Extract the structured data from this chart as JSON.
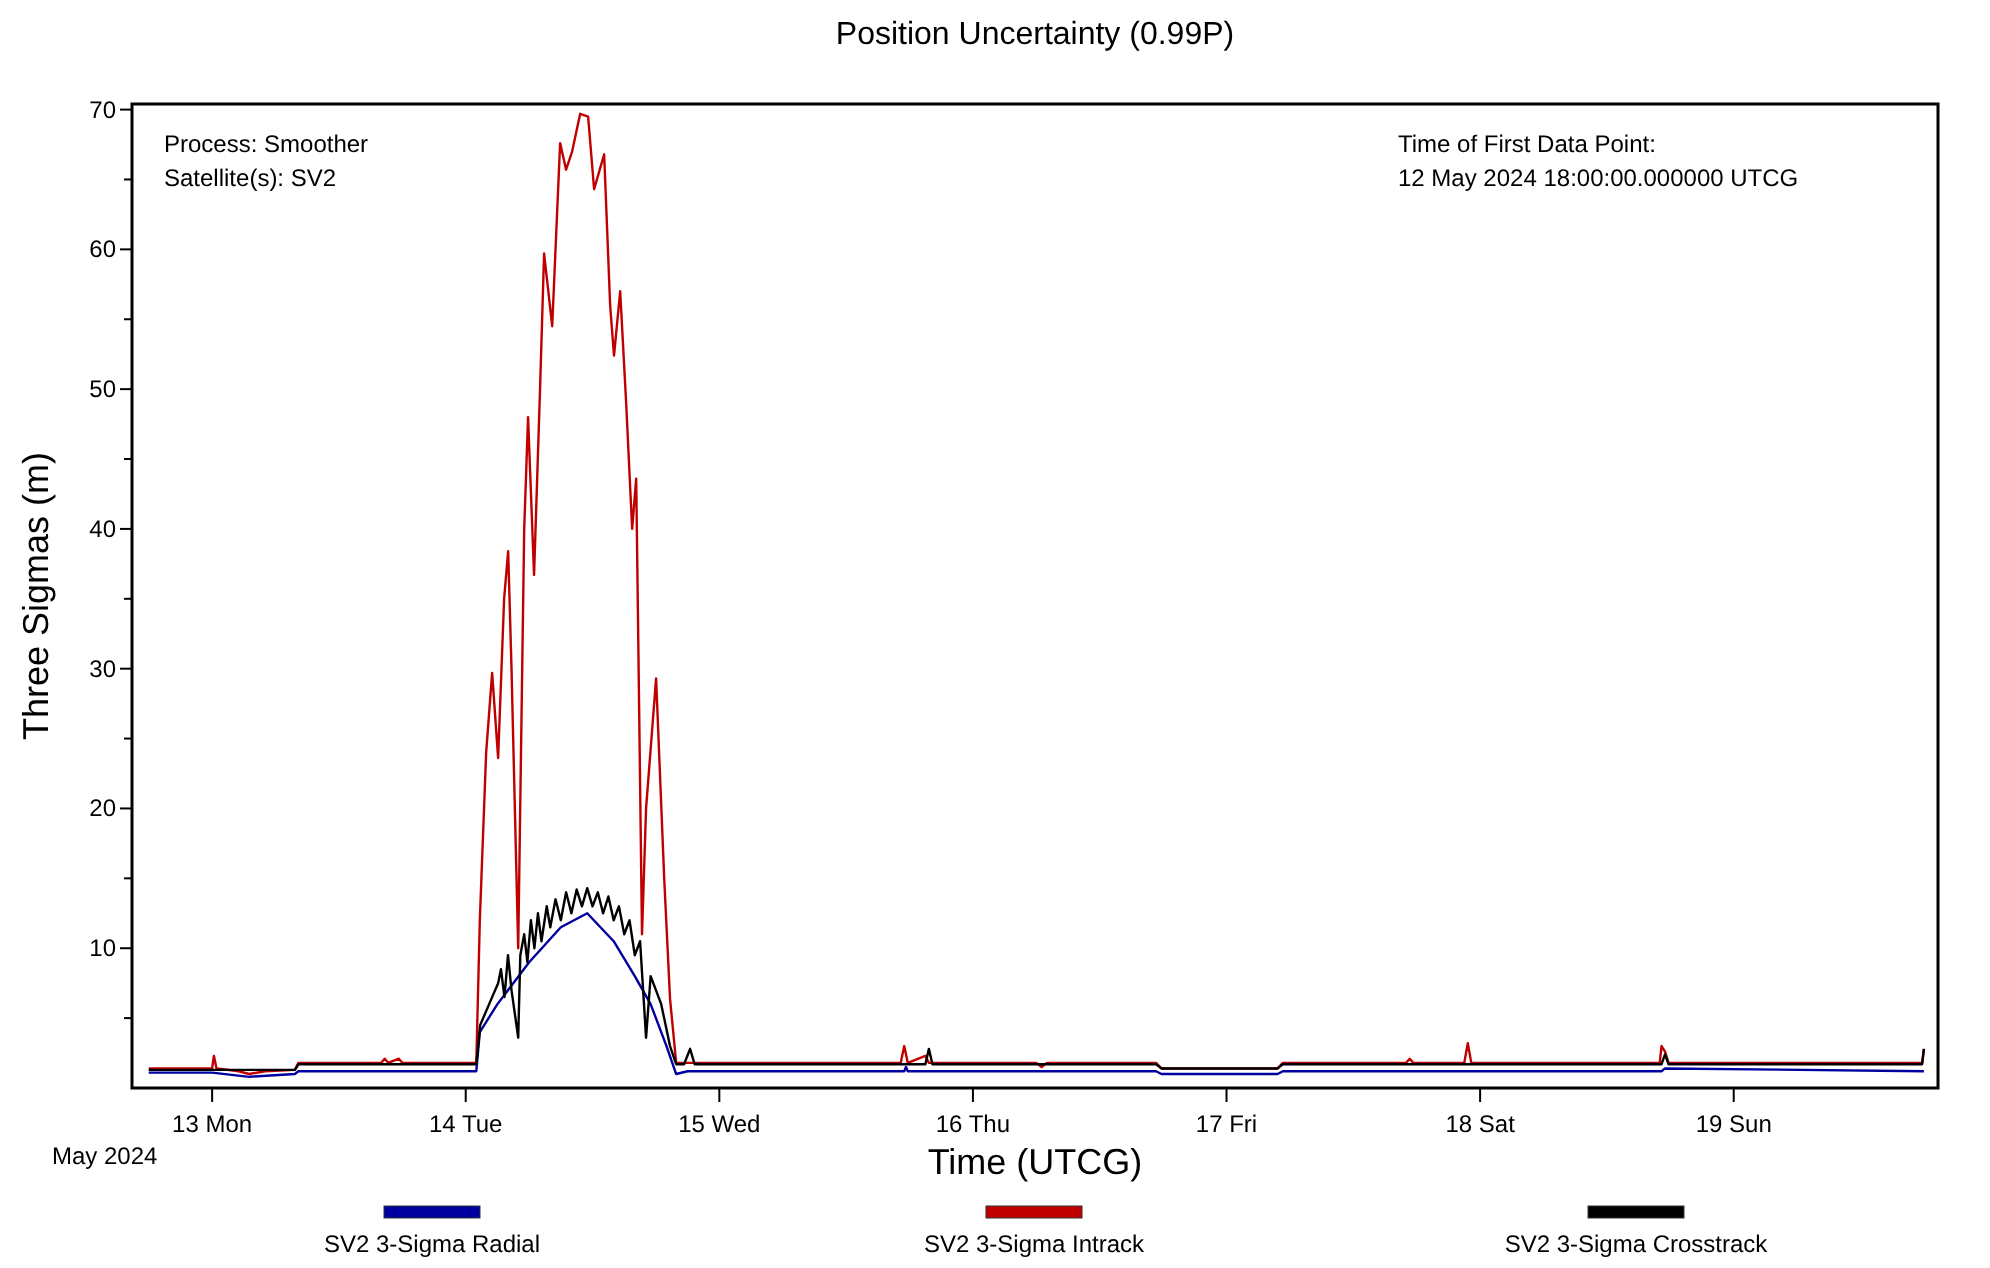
{
  "chart_data": {
    "type": "line",
    "title": "Position Uncertainty (0.99P)",
    "xlabel": "Time (UTCG)",
    "ylabel": "Three Sigmas (m)",
    "annotations": [
      "Process: Smoother",
      "Satellite(s): SV2",
      "Time of First Data Point:",
      "12 May 2024 18:00:00.000000 UTCG",
      "May 2024"
    ],
    "xlim": [
      "2024-05-12T16:25",
      "2024-05-19T19:20"
    ],
    "xticks": [
      {
        "value": "2024-05-13",
        "label": "13 Mon"
      },
      {
        "value": "2024-05-14",
        "label": "14 Tue"
      },
      {
        "value": "2024-05-15",
        "label": "15 Wed"
      },
      {
        "value": "2024-05-16",
        "label": "16 Thu"
      },
      {
        "value": "2024-05-17",
        "label": "17 Fri"
      },
      {
        "value": "2024-05-18",
        "label": "18 Sat"
      },
      {
        "value": "2024-05-19",
        "label": "19 Sun"
      }
    ],
    "ylim": [
      0,
      70.4
    ],
    "yticks": [
      {
        "value": 5,
        "label": null
      },
      10,
      {
        "value": 15,
        "label": null
      },
      20,
      {
        "value": 25,
        "label": null
      },
      30,
      {
        "value": 35,
        "label": null
      },
      40,
      {
        "value": 45,
        "label": null
      },
      50,
      {
        "value": 55,
        "label": null
      },
      60,
      {
        "value": 65,
        "label": null
      },
      70
    ],
    "grid": false,
    "legend": "bottom",
    "line_style": "solid",
    "marker": "none",
    "series": [
      {
        "name": "SV2 3-Sigma Radial",
        "color": "#0000a0",
        "x": [
          "2024-05-12T18:00",
          "2024-05-13T00:00",
          "2024-05-13T03:30",
          "2024-05-13T07:50",
          "2024-05-13T08:10",
          "2024-05-14T01:00",
          "2024-05-14T01:20",
          "2024-05-14T03:00",
          "2024-05-14T04:00",
          "2024-05-14T06:00",
          "2024-05-14T09:00",
          "2024-05-14T11:30",
          "2024-05-14T14:00",
          "2024-05-14T16:00",
          "2024-05-14T17:30",
          "2024-05-14T19:00",
          "2024-05-14T19:55",
          "2024-05-14T21:00",
          "2024-05-15T17:30",
          "2024-05-15T17:40",
          "2024-05-15T17:50",
          "2024-05-16T17:20",
          "2024-05-16T17:50",
          "2024-05-17T04:50",
          "2024-05-17T05:20",
          "2024-05-17T22:50",
          "2024-05-18T17:10",
          "2024-05-18T17:30",
          "2024-05-19T18:00"
        ],
        "values": [
          1.1,
          1.1,
          0.8,
          1.0,
          1.2,
          1.2,
          4,
          6,
          7,
          9,
          11.5,
          12.5,
          10.5,
          8,
          6,
          3,
          1.0,
          1.2,
          1.2,
          1.5,
          1.2,
          1.2,
          1.0,
          1.0,
          1.2,
          1.2,
          1.2,
          1.4,
          1.2
        ]
      },
      {
        "name": "SV2 3-Sigma Intrack",
        "color": "#c00000",
        "x": [
          "2024-05-12T18:00",
          "2024-05-13T00:00",
          "2024-05-13T00:10",
          "2024-05-13T00:25",
          "2024-05-13T02:30",
          "2024-05-13T03:30",
          "2024-05-13T05:00",
          "2024-05-13T07:50",
          "2024-05-13T08:10",
          "2024-05-13T16:00",
          "2024-05-13T16:20",
          "2024-05-13T16:40",
          "2024-05-13T17:40",
          "2024-05-13T18:00",
          "2024-05-14T01:00",
          "2024-05-14T01:20",
          "2024-05-14T01:56",
          "2024-05-14T02:30",
          "2024-05-14T03:04",
          "2024-05-14T03:38",
          "2024-05-14T04:01",
          "2024-05-14T04:20",
          "2024-05-14T04:58",
          "2024-05-14T05:32",
          "2024-05-14T05:54",
          "2024-05-14T06:28",
          "2024-05-14T07:02",
          "2024-05-14T07:25",
          "2024-05-14T08:11",
          "2024-05-14T08:56",
          "2024-05-14T09:30",
          "2024-05-14T10:04",
          "2024-05-14T10:50",
          "2024-05-14T11:35",
          "2024-05-14T12:09",
          "2024-05-14T13:06",
          "2024-05-14T13:40",
          "2024-05-14T14:02",
          "2024-05-14T14:37",
          "2024-05-14T15:11",
          "2024-05-14T15:45",
          "2024-05-14T16:08",
          "2024-05-14T16:41",
          "2024-05-14T17:04",
          "2024-05-14T18:01",
          "2024-05-14T18:47",
          "2024-05-14T19:20",
          "2024-05-14T19:55",
          "2024-05-15T17:10",
          "2024-05-15T17:30",
          "2024-05-15T17:50",
          "2024-05-15T19:30",
          "2024-05-15T19:50",
          "2024-05-16T06:00",
          "2024-05-16T06:30",
          "2024-05-16T07:00",
          "2024-05-16T17:20",
          "2024-05-16T17:50",
          "2024-05-17T04:50",
          "2024-05-17T05:20",
          "2024-05-17T17:00",
          "2024-05-17T17:20",
          "2024-05-17T17:40",
          "2024-05-17T22:30",
          "2024-05-17T22:50",
          "2024-05-17T23:10",
          "2024-05-18T17:00",
          "2024-05-18T17:10",
          "2024-05-18T17:30",
          "2024-05-18T17:50",
          "2024-05-19T17:50",
          "2024-05-19T18:00"
        ],
        "values": [
          1.4,
          1.4,
          2.3,
          1.4,
          1.2,
          1.0,
          1.2,
          1.3,
          1.8,
          1.8,
          2.1,
          1.8,
          2.1,
          1.8,
          1.8,
          12,
          24,
          29.7,
          23.6,
          35,
          38.4,
          30,
          10,
          40,
          48,
          36.7,
          50,
          59.7,
          54.5,
          67.6,
          65.7,
          67,
          69.7,
          69.5,
          64.3,
          66.8,
          56,
          52.4,
          57,
          49,
          40,
          43.6,
          11,
          20,
          29.3,
          15,
          6.4,
          1.8,
          1.8,
          3.0,
          1.8,
          2.3,
          1.8,
          1.8,
          1.5,
          1.8,
          1.8,
          1.4,
          1.4,
          1.8,
          1.8,
          2.1,
          1.8,
          1.8,
          3.2,
          1.8,
          1.8,
          3.0,
          2.6,
          1.8,
          1.8,
          2.8
        ]
      },
      {
        "name": "SV2 3-Sigma Crosstrack",
        "color": "#000000",
        "x": [
          "2024-05-12T18:00",
          "2024-05-13T07:50",
          "2024-05-13T08:10",
          "2024-05-14T01:00",
          "2024-05-14T01:22",
          "2024-05-14T02:30",
          "2024-05-14T03:04",
          "2024-05-14T03:20",
          "2024-05-14T03:40",
          "2024-05-14T04:00",
          "2024-05-14T04:20",
          "2024-05-14T04:58",
          "2024-05-14T05:10",
          "2024-05-14T05:32",
          "2024-05-14T05:50",
          "2024-05-14T06:10",
          "2024-05-14T06:30",
          "2024-05-14T06:50",
          "2024-05-14T07:10",
          "2024-05-14T07:40",
          "2024-05-14T08:00",
          "2024-05-14T08:30",
          "2024-05-14T09:00",
          "2024-05-14T09:30",
          "2024-05-14T10:00",
          "2024-05-14T10:30",
          "2024-05-14T11:00",
          "2024-05-14T11:30",
          "2024-05-14T12:00",
          "2024-05-14T12:30",
          "2024-05-14T13:00",
          "2024-05-14T13:30",
          "2024-05-14T14:00",
          "2024-05-14T14:30",
          "2024-05-14T15:00",
          "2024-05-14T15:30",
          "2024-05-14T16:00",
          "2024-05-14T16:30",
          "2024-05-14T17:04",
          "2024-05-14T17:30",
          "2024-05-14T18:00",
          "2024-05-14T18:30",
          "2024-05-14T19:20",
          "2024-05-14T19:55",
          "2024-05-14T20:40",
          "2024-05-14T21:14",
          "2024-05-14T21:40",
          "2024-05-15T19:30",
          "2024-05-15T19:50",
          "2024-05-15T20:10",
          "2024-05-16T17:20",
          "2024-05-16T17:50",
          "2024-05-17T04:50",
          "2024-05-17T05:20",
          "2024-05-18T17:10",
          "2024-05-18T17:30",
          "2024-05-18T17:50",
          "2024-05-19T17:50",
          "2024-05-19T18:00"
        ],
        "values": [
          1.3,
          1.3,
          1.7,
          1.7,
          4.5,
          6.5,
          7.5,
          8.5,
          6.5,
          9.5,
          7,
          3.6,
          9.5,
          11,
          9,
          12,
          10,
          12.5,
          10.5,
          13,
          11.5,
          13.5,
          12,
          14,
          12.5,
          14.2,
          13,
          14.3,
          13,
          14,
          12.5,
          13.7,
          12,
          13,
          11,
          12,
          9.5,
          10.5,
          3.6,
          8,
          7,
          6,
          3,
          1.7,
          1.7,
          2.8,
          1.7,
          1.7,
          2.8,
          1.7,
          1.7,
          1.4,
          1.4,
          1.7,
          1.7,
          2.4,
          1.7,
          1.7,
          2.8
        ]
      }
    ]
  }
}
